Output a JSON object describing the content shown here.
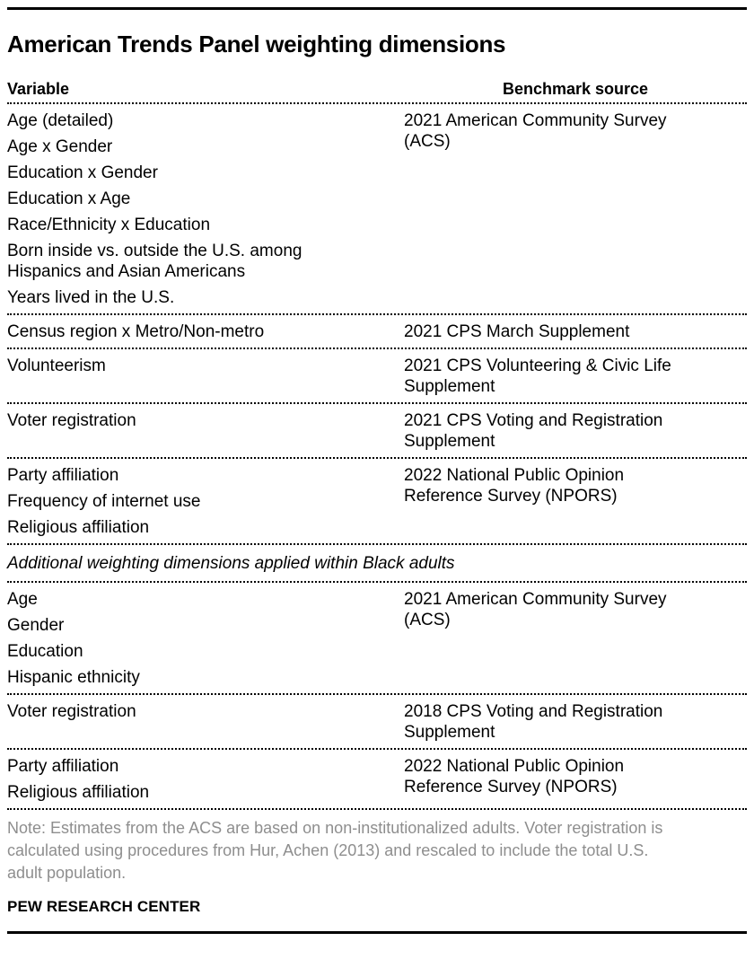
{
  "page": {
    "title": "American Trends Panel weighting dimensions",
    "note": "Note: Estimates from the ACS are based on non-institutionalized adults. Voter registration is\ncalculated using procedures from Hur, Achen (2013) and rescaled to include the total U.S.\nadult population.",
    "source_label": "PEW RESEARCH CENTER"
  },
  "table": {
    "headers": {
      "variable": "Variable",
      "benchmark": "Benchmark source"
    },
    "sections": [
      {
        "label": null,
        "rows": [
          {
            "variables": [
              "Age (detailed)",
              "Age x Gender",
              "Education x Gender",
              "Education x Age",
              "Race/Ethnicity x Education",
              "Born inside vs. outside the U.S. among\nHispanics and Asian Americans",
              "Years lived in the U.S."
            ],
            "benchmark": "2021 American Community Survey\n(ACS)"
          },
          {
            "variables": [
              "Census region x Metro/Non-metro"
            ],
            "benchmark": "2021 CPS March Supplement"
          },
          {
            "variables": [
              "Volunteerism"
            ],
            "benchmark": "2021 CPS Volunteering & Civic Life\nSupplement"
          },
          {
            "variables": [
              "Voter registration"
            ],
            "benchmark": "2021 CPS Voting and Registration\nSupplement"
          },
          {
            "variables": [
              "Party affiliation",
              "Frequency of internet use",
              "Religious affiliation"
            ],
            "benchmark": "2022 National Public Opinion\nReference Survey (NPORS)"
          }
        ]
      },
      {
        "label": "Additional weighting dimensions applied within Black adults",
        "rows": [
          {
            "variables": [
              "Age",
              "Gender",
              "Education",
              "Hispanic ethnicity"
            ],
            "benchmark": "2021 American Community Survey\n(ACS)"
          },
          {
            "variables": [
              "Voter registration"
            ],
            "benchmark": "2018 CPS Voting and Registration\nSupplement"
          },
          {
            "variables": [
              "Party affiliation",
              "Religious affiliation"
            ],
            "benchmark": "2022 National Public Opinion\nReference Survey (NPORS)"
          }
        ]
      }
    ]
  },
  "colors": {
    "text": "#000000",
    "note_text": "#8e8e8e",
    "rule": "#000000",
    "dotted_line": "#000000",
    "background": "#ffffff"
  }
}
